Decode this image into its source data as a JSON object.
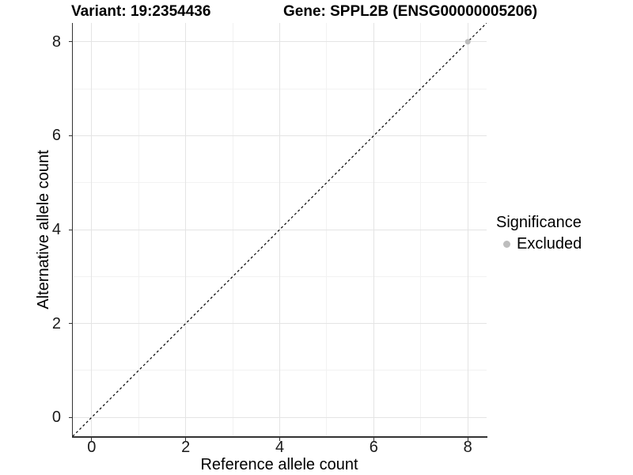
{
  "titles": {
    "variant": "Variant: 19:2354436",
    "gene": "Gene: SPPL2B (ENSG00000005206)"
  },
  "chart_data": {
    "type": "scatter",
    "xlabel": "Reference allele count",
    "ylabel": "Alternative allele count",
    "xlim": [
      -0.4,
      8.4
    ],
    "ylim": [
      -0.4,
      8.4
    ],
    "x_ticks": {
      "major": [
        0,
        2,
        4,
        6,
        8
      ],
      "minor": [
        1,
        3,
        5,
        7
      ]
    },
    "y_ticks": {
      "major": [
        0,
        2,
        4,
        6,
        8
      ],
      "minor": [
        1,
        3,
        5,
        7
      ]
    },
    "points": [
      {
        "x": 8,
        "y": 8,
        "series": "Excluded"
      }
    ],
    "reference_line": {
      "slope": 1,
      "intercept": 0,
      "style": "dashed"
    },
    "legend": {
      "title": "Significance",
      "position": "right",
      "items": [
        {
          "label": "Excluded",
          "color": "#bdbdbd"
        }
      ]
    },
    "grid": {
      "major": true,
      "minor": true
    },
    "colors": {
      "major_grid": "#e4e4e4",
      "minor_grid": "#f2f2f2",
      "axis_line": "#333333",
      "reference_line": "#000000",
      "tick_text": "#1a1a1a",
      "background": "#ffffff"
    }
  }
}
